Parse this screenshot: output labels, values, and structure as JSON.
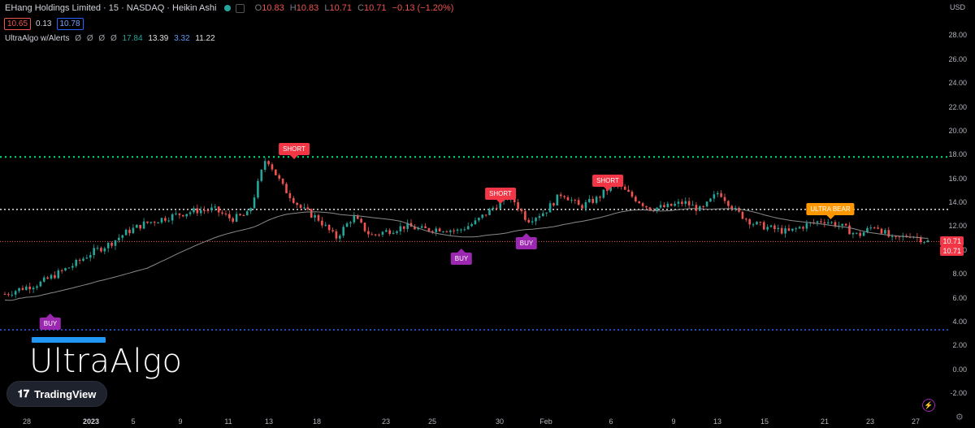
{
  "header": {
    "title": "EHang Holdings Limited · 15 · NASDAQ · Heikin Ashi",
    "ohlc": [
      {
        "k": "O",
        "v": "10.83"
      },
      {
        "k": "H",
        "v": "10.83"
      },
      {
        "k": "L",
        "v": "10.71"
      },
      {
        "k": "C",
        "v": "10.71"
      }
    ],
    "change": "−0.13 (−1.20%)",
    "bid": "10.65",
    "spread": "0.13",
    "ask": "10.78"
  },
  "indicator": {
    "name": "UltraAlgo w/Alerts",
    "zeros": [
      "Ø",
      "Ø",
      "Ø",
      "Ø"
    ],
    "v1": "17.84",
    "v2": "13.39",
    "v3": "3.32",
    "v4": "11.22"
  },
  "currency": "USD",
  "y_axis": [
    "28.00",
    "26.00",
    "24.00",
    "22.00",
    "20.00",
    "18.00",
    "16.00",
    "14.00",
    "12.00",
    "10.00",
    "8.00",
    "6.00",
    "4.00",
    "2.00",
    "0.00",
    "-2.00"
  ],
  "x_axis": [
    {
      "label": "28",
      "bold": false
    },
    {
      "label": "2023",
      "bold": true
    },
    {
      "label": "5",
      "bold": false
    },
    {
      "label": "9",
      "bold": false
    },
    {
      "label": "11",
      "bold": false
    },
    {
      "label": "13",
      "bold": false
    },
    {
      "label": "18",
      "bold": false
    },
    {
      "label": "23",
      "bold": false
    },
    {
      "label": "25",
      "bold": false
    },
    {
      "label": "30",
      "bold": false
    },
    {
      "label": "Feb",
      "bold": false
    },
    {
      "label": "6",
      "bold": false
    },
    {
      "label": "9",
      "bold": false
    },
    {
      "label": "13",
      "bold": false
    },
    {
      "label": "15",
      "bold": false
    },
    {
      "label": "21",
      "bold": false
    },
    {
      "label": "23",
      "bold": false
    },
    {
      "label": "27",
      "bold": false
    }
  ],
  "signals": [
    {
      "label": "SHORT",
      "type": "short"
    },
    {
      "label": "SHORT",
      "type": "short"
    },
    {
      "label": "SHORT",
      "type": "short"
    },
    {
      "label": "ULTRA BEAR",
      "type": "bear"
    },
    {
      "label": "BUY",
      "type": "buy"
    },
    {
      "label": "BUY",
      "type": "buy"
    },
    {
      "label": "BUY",
      "type": "buy"
    }
  ],
  "price_tags": [
    "10.71",
    "10.71"
  ],
  "levels": {
    "resistance": 17.8,
    "mid": 13.4,
    "support": 3.3,
    "last": 10.71
  },
  "branding": {
    "wordmark": "UltraAlgo",
    "badge_logo": "𝟏𝟕",
    "badge_text": "TradingView"
  },
  "colors": {
    "up": "#26a69a",
    "down": "#ef5350",
    "accent_blue": "#2196f3"
  },
  "chart_data": {
    "type": "candlestick",
    "title": "EHang Holdings Limited · 15 · NASDAQ · Heikin Ashi",
    "ylim": [
      -2,
      30
    ],
    "close_path": [
      6.3,
      6.8,
      7.2,
      8.0,
      8.8,
      9.8,
      10.5,
      11.5,
      12.2,
      12.6,
      13.0,
      13.3,
      13.4,
      12.6,
      13.0,
      17.8,
      15.2,
      13.5,
      12.6,
      11.0,
      12.8,
      11.2,
      11.6,
      12.0,
      11.7,
      11.8,
      11.6,
      12.3,
      13.5,
      14.6,
      12.5,
      13.2,
      14.8,
      13.6,
      14.3,
      15.6,
      14.5,
      13.5,
      13.6,
      14.0,
      13.3,
      14.9,
      13.2,
      12.2,
      11.8,
      11.5,
      12.1,
      12.5,
      12.0,
      11.2,
      12.1,
      10.8,
      11.3,
      10.7
    ],
    "series": [
      {
        "name": "UltraAlgo w/Alerts"
      }
    ]
  }
}
